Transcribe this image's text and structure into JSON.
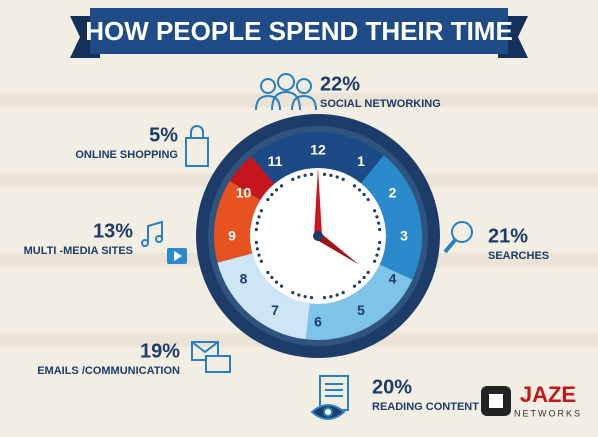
{
  "chart_data": {
    "type": "clock",
    "title": "HOW PEOPLE SPEND THEIR TIME",
    "categories": [
      "SOCIAL NETWORKING",
      "SEARCHES",
      "READING CONTENT",
      "EMAILS /COMMUNICATION",
      "MULTI -MEDIA SITES",
      "ONLINE SHOPPING"
    ],
    "values": [
      22,
      21,
      20,
      19,
      13,
      5
    ],
    "value_labels": [
      "22%",
      "21%",
      "20%",
      "19%",
      "13%",
      "5%"
    ],
    "colors": [
      "#1c4a86",
      "#2a8acb",
      "#7ec3e9",
      "#cde5f4",
      "#e8521f",
      "#c4161c"
    ],
    "clock_numbers": [
      "12",
      "1",
      "2",
      "3",
      "4",
      "5",
      "6",
      "7",
      "8",
      "9",
      "10",
      "11"
    ],
    "logo": {
      "name": "JAZE",
      "subtitle": "NETWORKS"
    }
  }
}
